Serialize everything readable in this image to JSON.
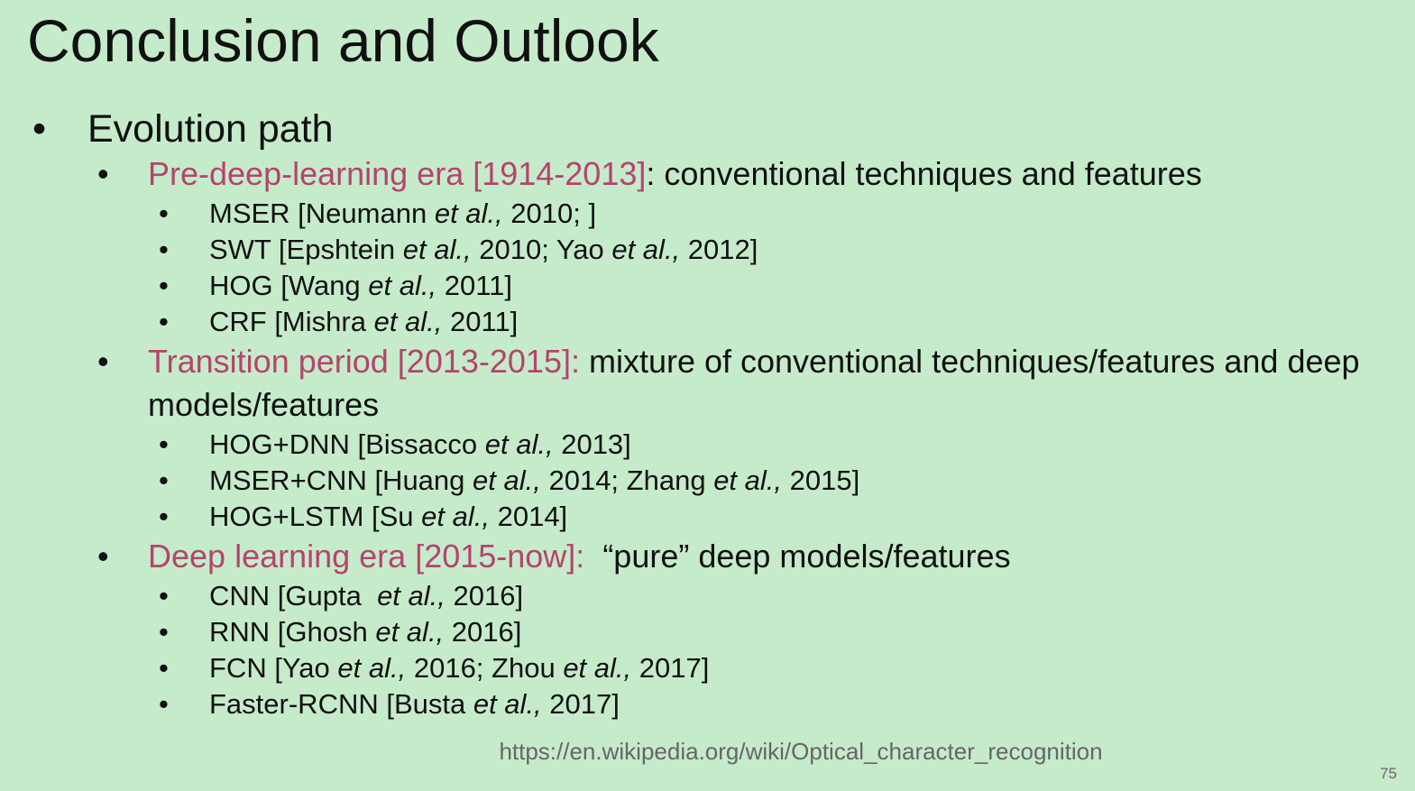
{
  "title": "Conclusion and Outlook",
  "highlight_color": "#b5446e",
  "bullets": [
    {
      "text": "Evolution path",
      "children": [
        {
          "label": "Pre-deep-learning era [1914-2013]",
          "text": ": conventional techniques and features",
          "items": [
            [
              "MSER [Neumann ",
              "et al.,",
              " 2010; ]"
            ],
            [
              "SWT [Epshtein ",
              "et al.,",
              " 2010; Yao ",
              "et al.,",
              " 2012]"
            ],
            [
              "HOG [Wang ",
              "et al.,",
              " 2011]"
            ],
            [
              "CRF [Mishra ",
              "et al.,",
              " 2011]"
            ]
          ]
        },
        {
          "label": "Transition period [2013-2015]:",
          "text": " mixture of conventional techniques/features and deep models/features",
          "items": [
            [
              "HOG+DNN [Bissacco ",
              "et al.,",
              " 2013]"
            ],
            [
              "MSER+CNN [Huang ",
              "et al.,",
              " 2014; Zhang ",
              "et al.,",
              " 2015]"
            ],
            [
              "HOG+LSTM [Su ",
              "et al.,",
              " 2014]"
            ]
          ]
        },
        {
          "label": "Deep learning era [2015-now]:",
          "text": "  “pure” deep models/features",
          "items": [
            [
              "CNN [Gupta  ",
              "et al.,",
              " 2016]"
            ],
            [
              "RNN [Ghosh ",
              "et al.,",
              " 2016]"
            ],
            [
              "FCN [Yao ",
              "et al.,",
              " 2016; Zhou ",
              "et al.,",
              " 2017]"
            ],
            [
              "Faster-RCNN [Busta ",
              "et al.,",
              " 2017]"
            ]
          ]
        }
      ]
    }
  ],
  "footer": {
    "url": "https://en.wikipedia.org/wiki/Optical_character_recognition",
    "page_number": "75"
  }
}
